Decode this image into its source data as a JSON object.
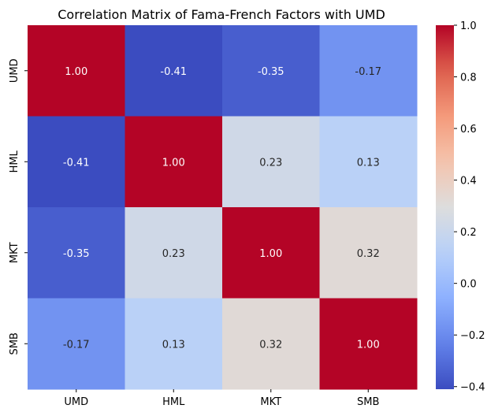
{
  "chart_data": {
    "type": "heatmap",
    "title": "Correlation Matrix of Fama-French Factors with UMD",
    "x_categories": [
      "UMD",
      "HML",
      "MKT",
      "SMB"
    ],
    "y_categories": [
      "UMD",
      "HML",
      "MKT",
      "SMB"
    ],
    "values": [
      [
        1.0,
        -0.41,
        -0.35,
        -0.17
      ],
      [
        -0.41,
        1.0,
        0.23,
        0.13
      ],
      [
        -0.35,
        0.23,
        1.0,
        0.32
      ],
      [
        -0.17,
        0.13,
        0.32,
        1.0
      ]
    ],
    "value_format": "2 decimals",
    "colormap": "coolwarm",
    "colorbar": {
      "range": [
        -0.41,
        1.0
      ],
      "ticks": [
        "1.0",
        "0.8",
        "0.6",
        "0.4",
        "0.2",
        "0.0",
        "-0.2",
        "-0.4"
      ],
      "tick_values": [
        1.0,
        0.8,
        0.6,
        0.4,
        0.2,
        0.0,
        -0.2,
        -0.4
      ],
      "placement": "right"
    }
  }
}
